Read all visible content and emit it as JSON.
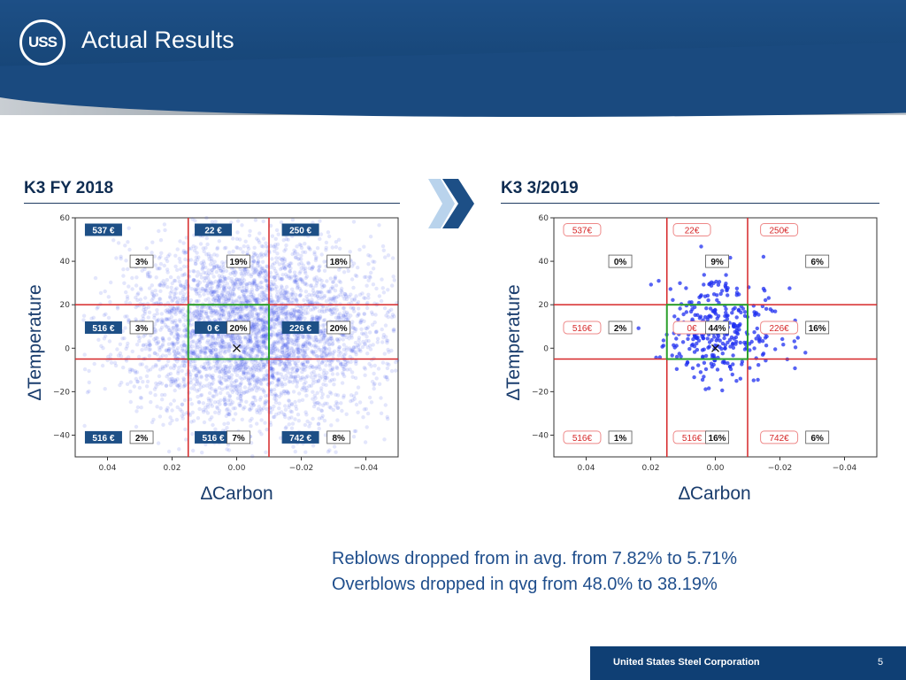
{
  "header": {
    "logo_text": "USS",
    "title": "Actual Results"
  },
  "chart_data": [
    {
      "type": "scatter",
      "title": "K3 FY 2018",
      "xlabel": "∆Carbon",
      "ylabel": "∆Temperature",
      "xlim": [
        0.05,
        -0.05
      ],
      "ylim": [
        -50,
        60
      ],
      "x_ticks": [
        0.04,
        0.02,
        0.0,
        -0.02,
        -0.04
      ],
      "x_tick_labels": [
        "0.04",
        "0.02",
        "0.00",
        "−0.02",
        "−0.04"
      ],
      "y_ticks": [
        60,
        40,
        20,
        0,
        -20,
        -40
      ],
      "y_tick_labels": [
        "60",
        "40",
        "20",
        "0",
        "−20",
        "−40"
      ],
      "red_lines": {
        "x": [
          0.015,
          -0.01
        ],
        "y": [
          20,
          -5
        ]
      },
      "target_box": {
        "x": [
          0.015,
          -0.01
        ],
        "y": [
          -5,
          20
        ]
      },
      "target_marker": {
        "x": 0.0,
        "y": 0
      },
      "point_color": "#2a3fe6",
      "point_count": 4200,
      "point_spread": {
        "x_sd": 0.02,
        "y_sd": 21,
        "x_mean": -0.005,
        "y_mean": 8
      },
      "cells": [
        {
          "cost": "537 €",
          "pct": "3%",
          "col": 0,
          "row": 0
        },
        {
          "cost": "22 €",
          "pct": "19%",
          "col": 1,
          "row": 0
        },
        {
          "cost": "250 €",
          "pct": "18%",
          "col": 2,
          "row": 0
        },
        {
          "cost": "516 €",
          "pct": "3%",
          "col": 0,
          "row": 1
        },
        {
          "cost": "0 €",
          "pct": "20%",
          "col": 1,
          "row": 1
        },
        {
          "cost": "226 €",
          "pct": "20%",
          "col": 2,
          "row": 1
        },
        {
          "cost": "516 €",
          "pct": "2%",
          "col": 0,
          "row": 2
        },
        {
          "cost": "516 €",
          "pct": "7%",
          "col": 1,
          "row": 2
        },
        {
          "cost": "742 €",
          "pct": "8%",
          "col": 2,
          "row": 2
        }
      ],
      "cost_label_style": "filled"
    },
    {
      "type": "scatter",
      "title": "K3 3/2019",
      "xlabel": "∆Carbon",
      "ylabel": "∆Temperature",
      "xlim": [
        0.05,
        -0.05
      ],
      "ylim": [
        -50,
        60
      ],
      "x_ticks": [
        0.04,
        0.02,
        0.0,
        -0.02,
        -0.04
      ],
      "x_tick_labels": [
        "0.04",
        "0.02",
        "0.00",
        "−0.02",
        "−0.04"
      ],
      "y_ticks": [
        60,
        40,
        20,
        0,
        -20,
        -40
      ],
      "y_tick_labels": [
        "60",
        "40",
        "20",
        "0",
        "−20",
        "−40"
      ],
      "red_lines": {
        "x": [
          0.015,
          -0.01
        ],
        "y": [
          20,
          -5
        ]
      },
      "target_box": {
        "x": [
          0.015,
          -0.01
        ],
        "y": [
          -5,
          20
        ]
      },
      "target_marker": {
        "x": 0.0,
        "y": 0
      },
      "point_color": "#1f2ff0",
      "point_count": 340,
      "point_spread": {
        "x_sd": 0.01,
        "y_sd": 11,
        "x_mean": -0.002,
        "y_mean": 8
      },
      "cells": [
        {
          "cost": "537€",
          "pct": "0%",
          "col": 0,
          "row": 0
        },
        {
          "cost": "22€",
          "pct": "9%",
          "col": 1,
          "row": 0
        },
        {
          "cost": "250€",
          "pct": "6%",
          "col": 2,
          "row": 0
        },
        {
          "cost": "516€",
          "pct": "2%",
          "col": 0,
          "row": 1
        },
        {
          "cost": "0€",
          "pct": "44%",
          "col": 1,
          "row": 1
        },
        {
          "cost": "226€",
          "pct": "16%",
          "col": 2,
          "row": 1
        },
        {
          "cost": "516€",
          "pct": "1%",
          "col": 0,
          "row": 2
        },
        {
          "cost": "516€",
          "pct": "16%",
          "col": 1,
          "row": 2
        },
        {
          "cost": "742€",
          "pct": "6%",
          "col": 2,
          "row": 2
        }
      ],
      "cost_label_style": "outlined"
    }
  ],
  "summary": {
    "line1": "Reblows dropped from in avg. from 7.82% to 5.71%",
    "line2": "Overblows dropped in qvg from 48.0% to 38.19%"
  },
  "footer": {
    "company": "United States Steel Corporation",
    "page": "5"
  },
  "colors": {
    "brand": "#174678",
    "red_line": "#d62728",
    "green_box": "#2ca02c"
  }
}
